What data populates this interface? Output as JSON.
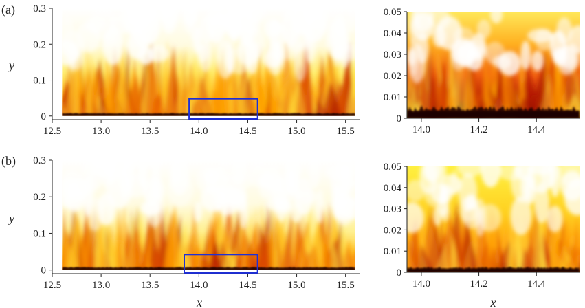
{
  "panels": [
    {
      "label": "(a)",
      "main": {
        "type": "heatmap",
        "xlim": [
          12.5,
          15.65
        ],
        "ylim": [
          -0.01,
          0.3
        ],
        "data_xrange": [
          12.6,
          15.6
        ],
        "data_yrange": [
          0,
          0.3
        ],
        "xticks": [
          "12.5",
          "13.0",
          "13.5",
          "14.0",
          "14.5",
          "15.0",
          "15.5"
        ],
        "xtick_values": [
          12.5,
          13.0,
          13.5,
          14.0,
          14.5,
          15.0,
          15.5
        ],
        "yticks": [
          "0",
          "0.1",
          "0.2",
          "0.3"
        ],
        "ytick_values": [
          0,
          0.1,
          0.2,
          0.3
        ],
        "ylabel": "y",
        "xlabel": "",
        "highlight_box": {
          "x": [
            13.9,
            14.6
          ],
          "y": [
            -0.008,
            0.048
          ],
          "color": "#1f2fd6"
        }
      },
      "zoom": {
        "type": "heatmap",
        "xlim": [
          13.95,
          14.55
        ],
        "ylim": [
          0,
          0.05
        ],
        "xticks": [
          "14.0",
          "14.2",
          "14.4"
        ],
        "xtick_values": [
          14.0,
          14.2,
          14.4
        ],
        "yticks": [
          "0",
          "0.01",
          "0.02",
          "0.03",
          "0.04",
          "0.05"
        ],
        "ytick_values": [
          0,
          0.01,
          0.02,
          0.03,
          0.04,
          0.05
        ],
        "xlabel": ""
      }
    },
    {
      "label": "(b)",
      "main": {
        "type": "heatmap",
        "xlim": [
          12.5,
          15.65
        ],
        "ylim": [
          -0.01,
          0.3
        ],
        "data_xrange": [
          12.6,
          15.6
        ],
        "data_yrange": [
          0,
          0.3
        ],
        "xticks": [
          "12.5",
          "13.0",
          "13.5",
          "14.0",
          "14.5",
          "15.0",
          "15.5"
        ],
        "xtick_values": [
          12.5,
          13.0,
          13.5,
          14.0,
          14.5,
          15.0,
          15.5
        ],
        "yticks": [
          "0",
          "0.1",
          "0.2",
          "0.3"
        ],
        "ytick_values": [
          0,
          0.1,
          0.2,
          0.3
        ],
        "ylabel": "y",
        "xlabel": "x",
        "highlight_box": {
          "x": [
            13.85,
            14.6
          ],
          "y": [
            -0.008,
            0.042
          ],
          "color": "#1f2fd6"
        }
      },
      "zoom": {
        "type": "heatmap",
        "xlim": [
          13.95,
          14.55
        ],
        "ylim": [
          0,
          0.05
        ],
        "xticks": [
          "14.0",
          "14.2",
          "14.4"
        ],
        "xtick_values": [
          14.0,
          14.2,
          14.4
        ],
        "yticks": [
          "0",
          "0.01",
          "0.02",
          "0.03",
          "0.04",
          "0.05"
        ],
        "ytick_values": [
          0,
          0.01,
          0.02,
          0.03,
          0.04,
          0.05
        ],
        "xlabel": "x"
      }
    }
  ],
  "colormap": [
    "#ffffff",
    "#fff7b0",
    "#ffe640",
    "#ffb000",
    "#f06000",
    "#b01000",
    "#000000"
  ]
}
